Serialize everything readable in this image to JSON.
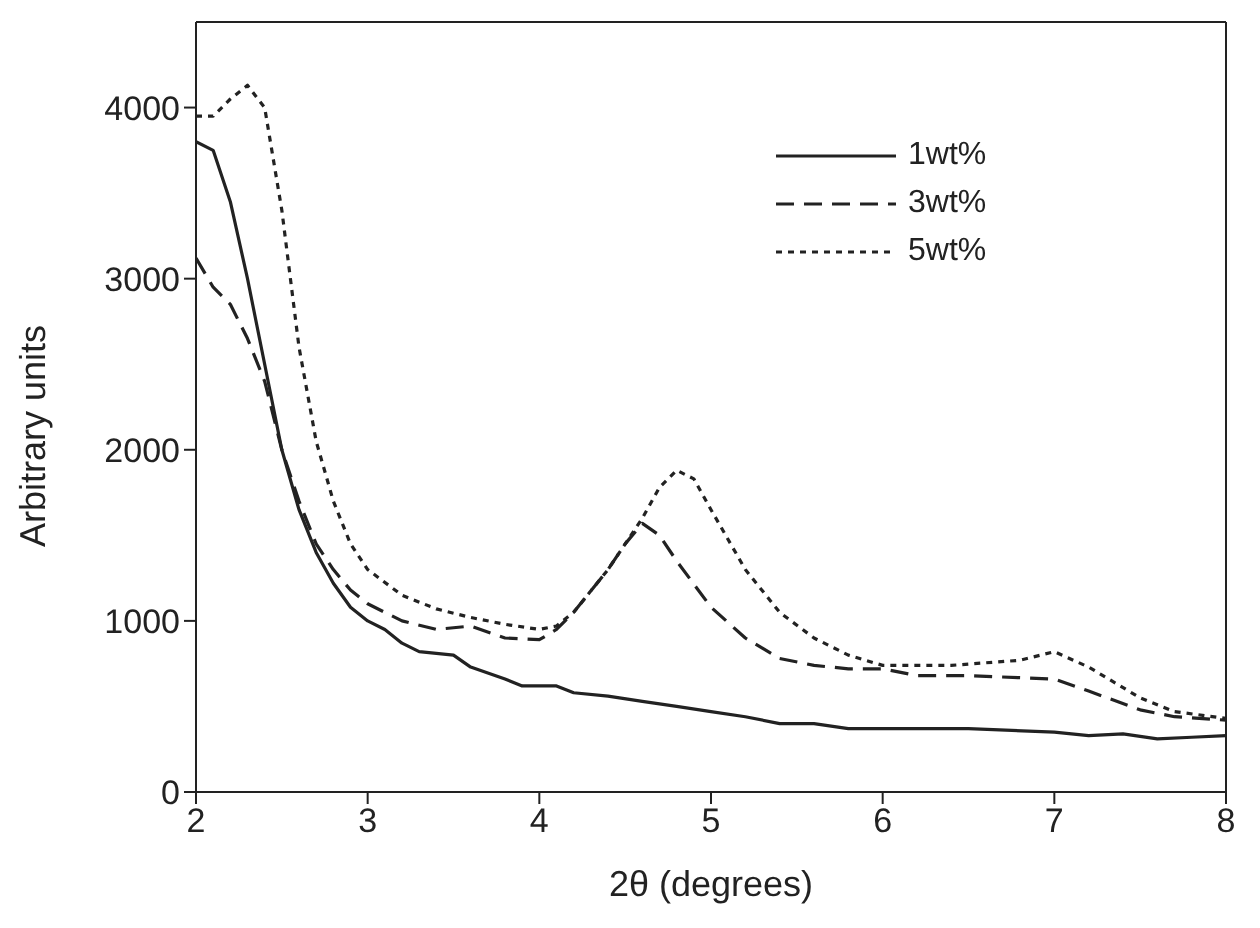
{
  "chart_data": {
    "type": "line",
    "xlabel": "2θ (degrees)",
    "ylabel": "Arbitrary units",
    "xlim": [
      2,
      8
    ],
    "xticks": [
      2,
      3,
      4,
      5,
      6,
      7,
      8
    ],
    "ylim": [
      0,
      4500
    ],
    "yticks": [
      0,
      1000,
      2000,
      3000,
      4000
    ],
    "legend": "top right",
    "marker": "none",
    "series": [
      {
        "name": "1wt%",
        "color": "#222222",
        "line_style": "solid",
        "x": [
          2,
          2.1,
          2.2,
          2.3,
          2.4,
          2.5,
          2.6,
          2.7,
          2.8,
          2.9,
          3.0,
          3.1,
          3.2,
          3.3,
          3.5,
          3.6,
          3.8,
          3.9,
          4.1,
          4.2,
          4.4,
          4.6,
          4.8,
          5.0,
          5.2,
          5.4,
          5.6,
          5.8,
          6.0,
          6.5,
          7.0,
          7.2,
          7.4,
          7.6,
          7.8,
          8
        ],
        "values": [
          3800,
          3750,
          3450,
          3000,
          2500,
          2000,
          1650,
          1400,
          1220,
          1080,
          1000,
          950,
          870,
          820,
          800,
          730,
          660,
          620,
          620,
          580,
          560,
          530,
          500,
          470,
          440,
          400,
          400,
          370,
          370,
          370,
          350,
          330,
          340,
          310,
          320,
          330
        ]
      },
      {
        "name": "3wt%",
        "color": "#222222",
        "line_style": "dashed",
        "x": [
          2,
          2.1,
          2.2,
          2.3,
          2.4,
          2.5,
          2.6,
          2.7,
          2.8,
          2.9,
          3.0,
          3.2,
          3.4,
          3.6,
          3.8,
          4.0,
          4.1,
          4.2,
          4.4,
          4.5,
          4.6,
          4.7,
          4.8,
          5.0,
          5.2,
          5.4,
          5.6,
          5.8,
          6.0,
          6.2,
          6.5,
          7.0,
          7.2,
          7.5,
          7.7,
          8
        ],
        "values": [
          3120,
          2950,
          2850,
          2650,
          2400,
          2000,
          1700,
          1450,
          1300,
          1180,
          1100,
          1000,
          950,
          970,
          900,
          890,
          950,
          1050,
          1300,
          1450,
          1570,
          1500,
          1350,
          1080,
          900,
          780,
          740,
          720,
          720,
          680,
          680,
          660,
          590,
          480,
          440,
          420
        ]
      },
      {
        "name": "5wt%",
        "color": "#222222",
        "line_style": "dotted",
        "x": [
          2,
          2.1,
          2.2,
          2.3,
          2.4,
          2.5,
          2.6,
          2.7,
          2.8,
          2.9,
          3.0,
          3.2,
          3.4,
          3.6,
          3.8,
          4.0,
          4.1,
          4.2,
          4.4,
          4.6,
          4.7,
          4.8,
          4.9,
          5.0,
          5.2,
          5.4,
          5.6,
          5.8,
          6.0,
          6.4,
          6.8,
          7.0,
          7.2,
          7.5,
          7.7,
          8
        ],
        "values": [
          3950,
          3950,
          4050,
          4130,
          4000,
          3400,
          2600,
          2050,
          1700,
          1450,
          1300,
          1150,
          1070,
          1020,
          980,
          950,
          970,
          1050,
          1300,
          1600,
          1780,
          1880,
          1830,
          1650,
          1300,
          1050,
          900,
          800,
          740,
          740,
          770,
          820,
          730,
          550,
          470,
          430
        ]
      }
    ]
  }
}
